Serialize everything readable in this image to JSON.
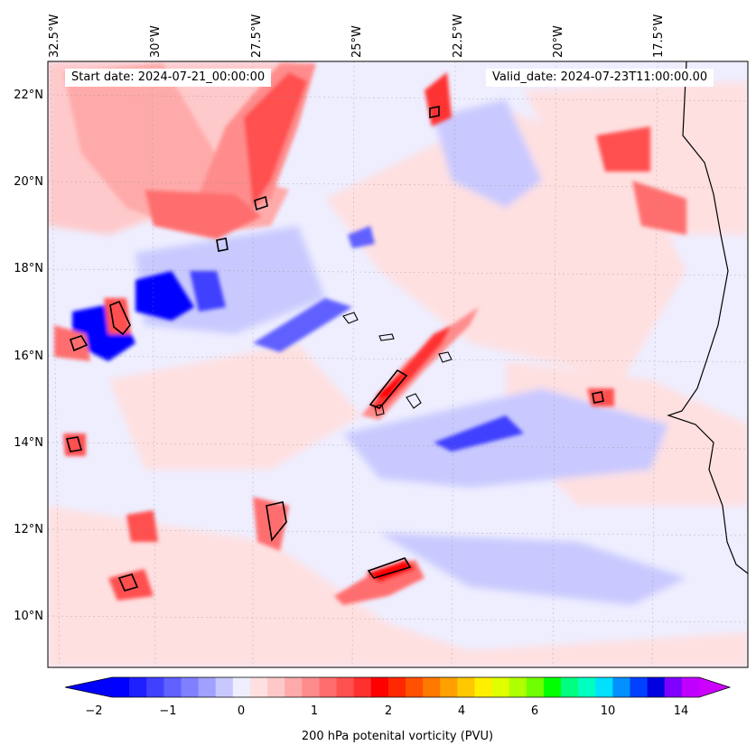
{
  "header": {
    "start_date": "Start date: 2024-07-21_00:00:00",
    "valid_date": "Valid_date: 2024-07-23T11:00:00.00"
  },
  "map": {
    "lon_labels": [
      "32.5°W",
      "30°W",
      "27.5°W",
      "25°W",
      "22.5°W",
      "20°W",
      "17.5°W"
    ],
    "lat_labels": [
      "22°N",
      "20°N",
      "18°N",
      "16°N",
      "14°N",
      "12°N",
      "10°N"
    ],
    "features": [
      "potential-vorticity-field",
      "coastline-west-africa",
      "cape-verde-islands",
      "pv-2-contours"
    ]
  },
  "colorbar": {
    "label": "200 hPa potenital vorticity (PVU)",
    "tick_labels": [
      "−2",
      "−1",
      "0",
      "1",
      "2",
      "4",
      "6",
      "10",
      "14"
    ],
    "colors": [
      "#0000ff",
      "#2020ff",
      "#4040ff",
      "#6060ff",
      "#8080ff",
      "#a0a0ff",
      "#c8c8ff",
      "#eeeeff",
      "#ffe0e0",
      "#ffc8c8",
      "#ffaaaa",
      "#ff8c8c",
      "#ff6e6e",
      "#ff5050",
      "#ff3030",
      "#ff0000",
      "#ff2800",
      "#ff5000",
      "#ff7800",
      "#ffa000",
      "#ffc800",
      "#fff000",
      "#e0ff00",
      "#b0ff00",
      "#70ff00",
      "#00ff00",
      "#00ff80",
      "#00ffc0",
      "#00e0ff",
      "#0090ff",
      "#0040ff",
      "#0000e0",
      "#8000ff",
      "#c000ff"
    ],
    "under_color": "#0000ff",
    "over_color": "#cc00ff"
  }
}
